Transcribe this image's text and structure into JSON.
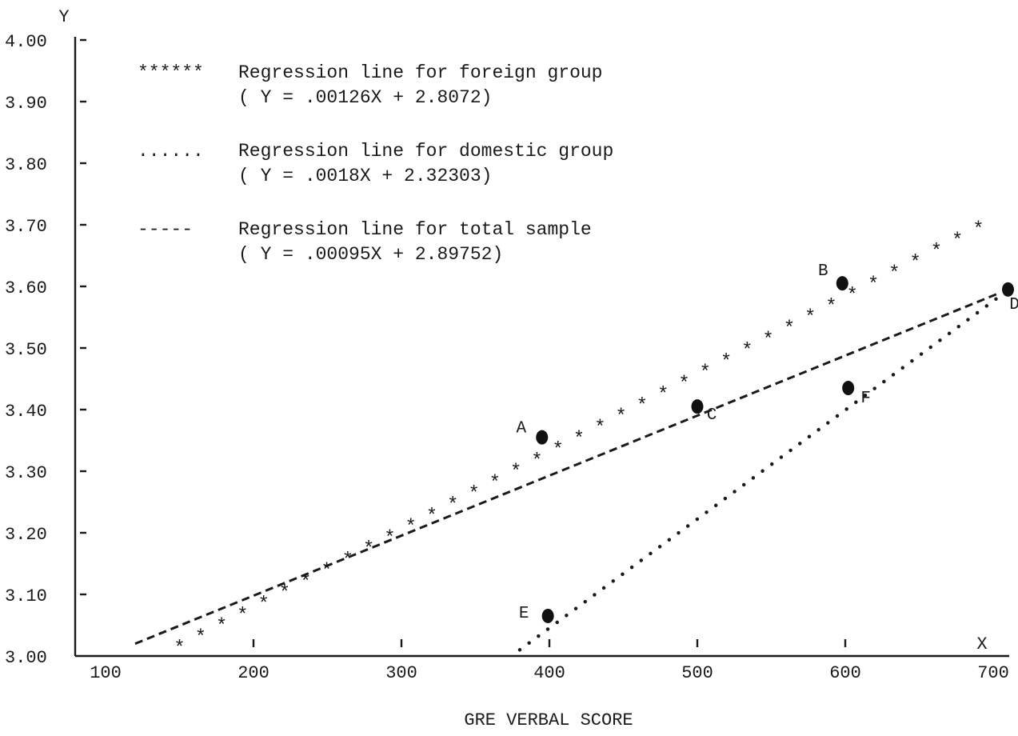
{
  "chart_data": {
    "type": "line",
    "title": "",
    "xlabel": "GRE VERBAL SCORE",
    "ylabel": "",
    "x_axis_letter": "X",
    "y_axis_letter": "Y",
    "xlim": [
      100,
      700
    ],
    "ylim": [
      3.0,
      4.0
    ],
    "x_ticks": [
      100,
      200,
      300,
      400,
      500,
      600,
      700
    ],
    "x_tick_labels": [
      "100",
      "200",
      "300",
      "400",
      "500",
      "600",
      "700"
    ],
    "y_ticks": [
      3.0,
      3.1,
      3.2,
      3.3,
      3.4,
      3.5,
      3.6,
      3.7,
      3.8,
      3.9,
      4.0
    ],
    "y_tick_labels": [
      "3.00",
      "3.10",
      "3.20",
      "3.30",
      "3.40",
      "3.50",
      "3.60",
      "3.70",
      "3.80",
      "3.90",
      "4.00"
    ],
    "grid": false,
    "legend_position": "top-left",
    "series": [
      {
        "name": "Regression line for foreign group",
        "legend_symbol": "******",
        "equation": "( Y = .00126X + 2.8072)",
        "style": "asterisk",
        "x": [
          150,
          690
        ],
        "y": [
          3.02,
          3.7
        ]
      },
      {
        "name": "Regression line for domestic group",
        "legend_symbol": "......",
        "equation": "( Y = .0018X + 2.32303)",
        "style": "dotted",
        "x": [
          380,
          705
        ],
        "y": [
          3.01,
          3.585
        ]
      },
      {
        "name": "Regression line for total sample",
        "legend_symbol": "-----",
        "equation": "( Y = .00095X + 2.89752)",
        "style": "dashed",
        "x": [
          120,
          705
        ],
        "y": [
          3.02,
          3.59
        ]
      }
    ],
    "points": [
      {
        "label": "A",
        "x": 395,
        "y": 3.355
      },
      {
        "label": "B",
        "x": 598,
        "y": 3.605
      },
      {
        "label": "C",
        "x": 500,
        "y": 3.405
      },
      {
        "label": "D",
        "x": 710,
        "y": 3.595
      },
      {
        "label": "E",
        "x": 399,
        "y": 3.065
      },
      {
        "label": "F",
        "x": 602,
        "y": 3.435
      }
    ]
  }
}
